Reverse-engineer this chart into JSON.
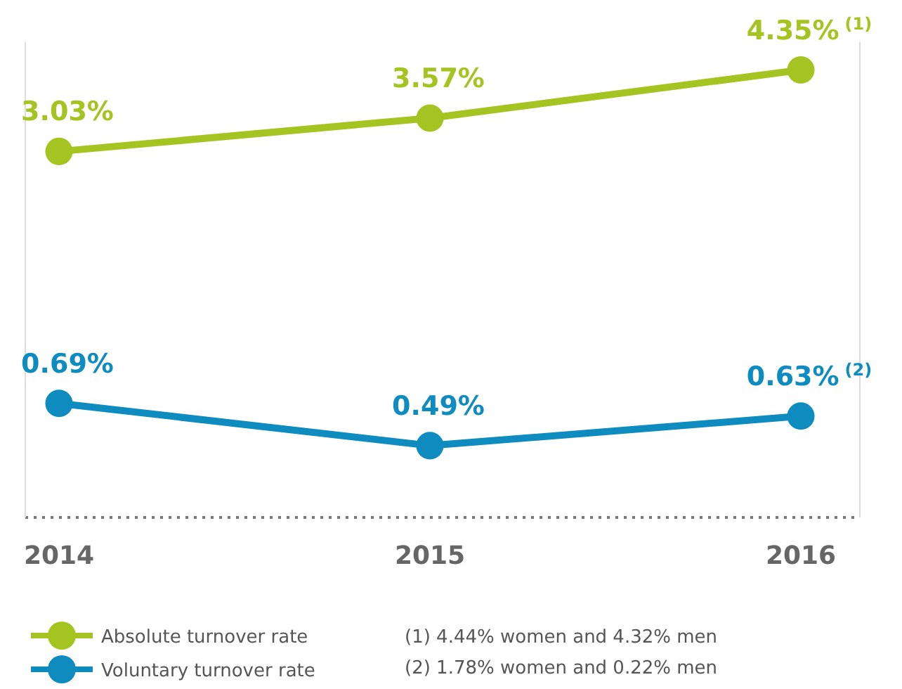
{
  "chart_data": {
    "type": "line",
    "categories": [
      "2014",
      "2015",
      "2016"
    ],
    "series": [
      {
        "name": "Absolute turnover rate",
        "color": "#a5c422",
        "values": [
          3.03,
          3.57,
          4.35
        ],
        "value_labels": [
          "3.03%",
          "3.57%",
          "4.35%$^{(1)}$"
        ]
      },
      {
        "name": "Voluntary turnover rate",
        "color": "#0e8bbf",
        "axis": "y2",
        "values": [
          0.69,
          0.49,
          0.63
        ],
        "value_labels": [
          "0.69%",
          "0.49%",
          "0.63%$^{(2)}$"
        ]
      }
    ],
    "ylim": [
      -2.9,
      4.8
    ],
    "y2lim": [
      0.15,
      2.4
    ],
    "tick_labels": "x",
    "marker": "circle",
    "legend": "bottom left",
    "annotations": [
      "(1) 4.44% women and 4.32% men",
      "(2) 1.78% women and 0.22% men"
    ]
  }
}
